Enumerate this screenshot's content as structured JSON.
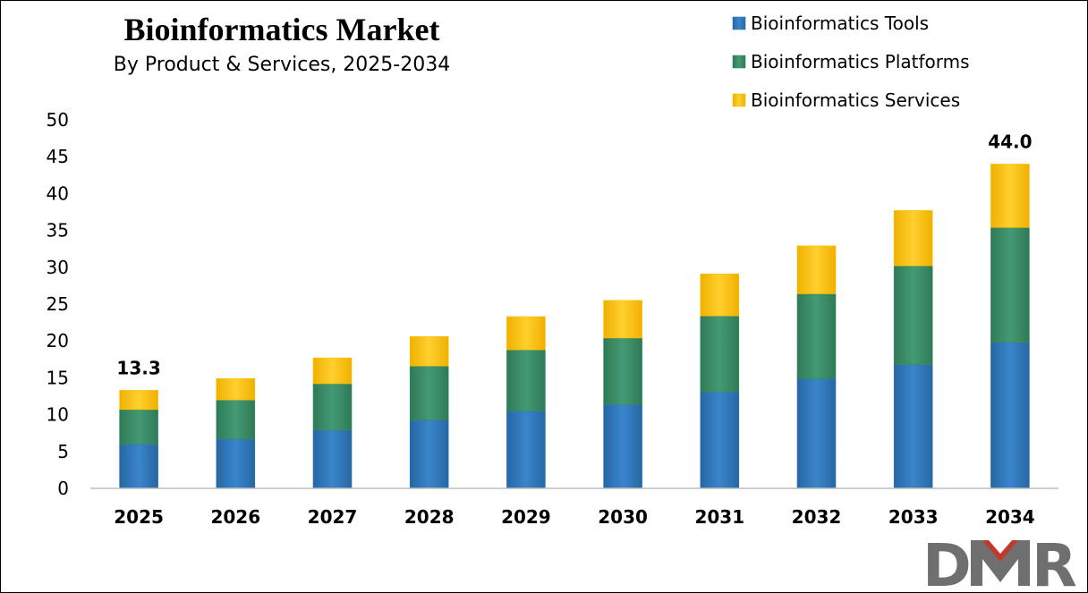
{
  "chart_data": {
    "type": "bar",
    "stacked": true,
    "title": "Bioinformatics Market",
    "subtitle": "By Product & Services, 2025-2034",
    "categories": [
      "2025",
      "2026",
      "2027",
      "2028",
      "2029",
      "2030",
      "2031",
      "2032",
      "2033",
      "2034"
    ],
    "series": [
      {
        "name": "Bioinformatics Tools",
        "color": "#2e75b6",
        "values": [
          6.0,
          6.7,
          7.9,
          9.3,
          10.5,
          11.4,
          13.1,
          14.9,
          16.8,
          19.8
        ]
      },
      {
        "name": "Bioinformatics Platforms",
        "color": "#3a8a66",
        "values": [
          4.7,
          5.3,
          6.3,
          7.3,
          8.3,
          9.0,
          10.3,
          11.5,
          13.4,
          15.6
        ]
      },
      {
        "name": "Bioinformatics Services",
        "color": "#ffc000",
        "values": [
          2.6,
          2.9,
          3.5,
          4.0,
          4.5,
          5.1,
          5.7,
          6.5,
          7.5,
          8.6
        ]
      }
    ],
    "data_labels": [
      {
        "category": "2025",
        "text": "13.3"
      },
      {
        "category": "2034",
        "text": "44.0"
      }
    ],
    "ylim": [
      0,
      50
    ],
    "yticks": [
      "0",
      "5",
      "10",
      "15",
      "20",
      "25",
      "30",
      "35",
      "40",
      "45",
      "50"
    ],
    "grid": false,
    "legend_position": "top-right"
  },
  "logo": {
    "text": "DMR",
    "color": "#6f6f6f",
    "accent_color": "#c0392b"
  }
}
